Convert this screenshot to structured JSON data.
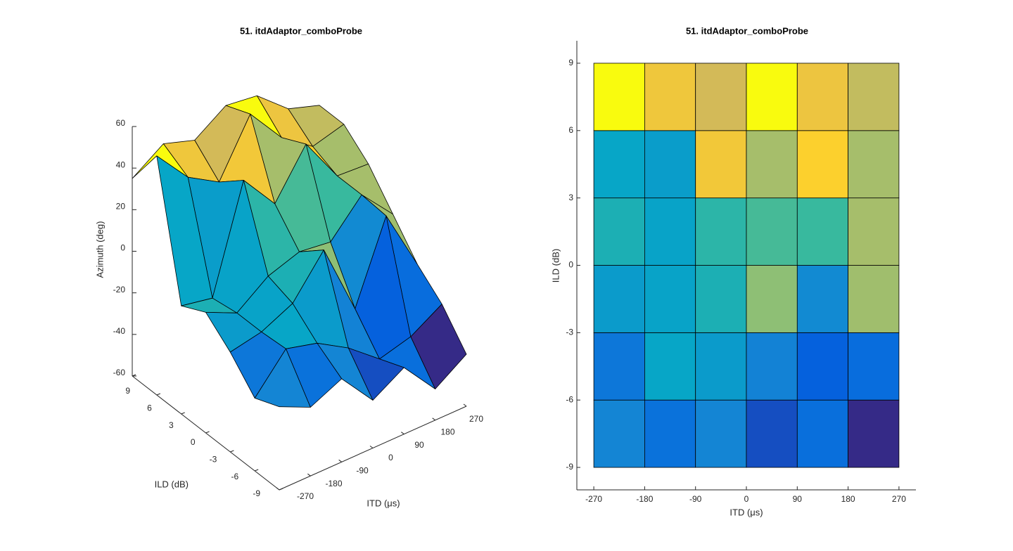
{
  "chart_data": [
    {
      "type": "surface",
      "title": "51. itdAdaptor_comboProbe",
      "xlabel": "ITD (μs)",
      "ylabel": "ILD (dB)",
      "zlabel": "Azimuth (deg)",
      "x": [
        -270,
        -180,
        -90,
        0,
        90,
        180,
        270
      ],
      "y": [
        -9,
        -6,
        -3,
        0,
        3,
        6,
        9
      ],
      "z": [
        [
          -20,
          -27,
          -20,
          -37,
          -28,
          -45,
          -35
        ],
        [
          -25,
          -8,
          -12,
          -21,
          -33,
          -29,
          -20
        ],
        [
          -12,
          -9,
          -2,
          17,
          -18,
          20,
          -10
        ],
        [
          -2,
          -9,
          2,
          7,
          5,
          21,
          5
        ],
        [
          -8,
          -11,
          39,
          21,
          43,
          21,
          20
        ],
        [
          55,
          38,
          29,
          55,
          37,
          26,
          30
        ],
        [
          35,
          45,
          40,
          50,
          48,
          35,
          30
        ]
      ],
      "xlim": [
        -270,
        270
      ],
      "ylim": [
        -9,
        9
      ],
      "zlim": [
        -60,
        60
      ],
      "xticks": [
        -270,
        -180,
        -90,
        0,
        90,
        180,
        270
      ],
      "yticks": [
        -9,
        -6,
        -3,
        0,
        3,
        6,
        9
      ],
      "zticks": [
        -60,
        -40,
        -20,
        0,
        20,
        40,
        60
      ]
    },
    {
      "type": "heatmap",
      "title": "51. itdAdaptor_comboProbe",
      "xlabel": "ITD (μs)",
      "ylabel": "ILD (dB)",
      "x": [
        -270,
        -180,
        -90,
        0,
        90,
        180,
        270
      ],
      "y": [
        -9,
        -6,
        -3,
        0,
        3,
        6,
        9
      ],
      "values": [
        [
          -20,
          -27,
          -20,
          -37,
          -28,
          -45
        ],
        [
          -25,
          -8,
          -12,
          -21,
          -33,
          -29
        ],
        [
          -12,
          -9,
          -2,
          17,
          -18,
          20
        ],
        [
          -2,
          -9,
          2,
          7,
          5,
          21
        ],
        [
          -8,
          -11,
          39,
          21,
          43,
          21
        ],
        [
          55,
          38,
          29,
          55,
          37,
          26
        ]
      ],
      "xlim": [
        -300,
        300
      ],
      "ylim": [
        -10,
        10
      ],
      "xticks": [
        -270,
        -180,
        -90,
        0,
        90,
        180,
        270
      ],
      "yticks": [
        -9,
        -6,
        -3,
        0,
        3,
        6,
        9
      ]
    }
  ]
}
